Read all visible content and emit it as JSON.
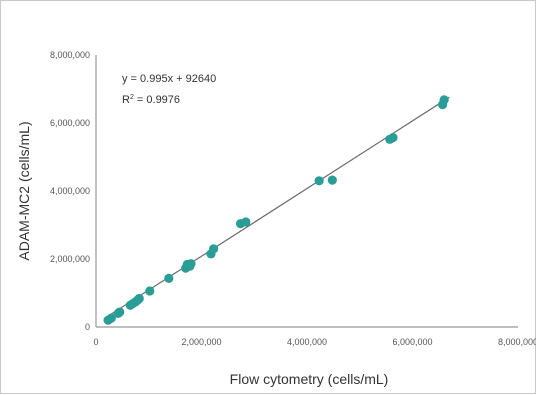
{
  "chart_data": {
    "type": "scatter",
    "title": "",
    "xlabel": "Flow cytometry (cells/mL)",
    "ylabel": "ADAM-MC2 (cells/mL)",
    "xlim": [
      0,
      8000000
    ],
    "ylim": [
      0,
      8000000
    ],
    "x_ticks": [
      0,
      2000000,
      4000000,
      6000000,
      8000000
    ],
    "x_tick_labels": [
      "0",
      "2,000,000",
      "4,000,000",
      "6,000,000",
      "8,000,000"
    ],
    "y_ticks": [
      0,
      2000000,
      4000000,
      6000000,
      8000000
    ],
    "y_tick_labels": [
      "0",
      "2,000,000",
      "4,000,000",
      "6,000,000",
      "8,000,000"
    ],
    "grid": false,
    "legend": "none",
    "colors": {
      "points": "#2a9d97",
      "line": "#6b6b6b",
      "axis": "#999999"
    },
    "trendline": {
      "slope": 0.995,
      "intercept": 92640,
      "x_range": [
        150000,
        6700000
      ],
      "equation_label": "y = 0.995x + 92640",
      "r2_prefix": "R",
      "r2_sup": "2",
      "r2_suffix": " = 0.9976"
    },
    "series": [
      {
        "points": [
          [
            230000,
            200000
          ],
          [
            290000,
            260000
          ],
          [
            420000,
            400000
          ],
          [
            450000,
            440000
          ],
          [
            650000,
            640000
          ],
          [
            700000,
            690000
          ],
          [
            750000,
            740000
          ],
          [
            790000,
            790000
          ],
          [
            820000,
            840000
          ],
          [
            1020000,
            1060000
          ],
          [
            1380000,
            1430000
          ],
          [
            1700000,
            1730000
          ],
          [
            1730000,
            1840000
          ],
          [
            1780000,
            1790000
          ],
          [
            1800000,
            1860000
          ],
          [
            2180000,
            2150000
          ],
          [
            2230000,
            2300000
          ],
          [
            2740000,
            3040000
          ],
          [
            2840000,
            3090000
          ],
          [
            4230000,
            4300000
          ],
          [
            4480000,
            4320000
          ],
          [
            5570000,
            5520000
          ],
          [
            5630000,
            5570000
          ],
          [
            6570000,
            6540000
          ],
          [
            6600000,
            6680000
          ]
        ]
      }
    ]
  }
}
